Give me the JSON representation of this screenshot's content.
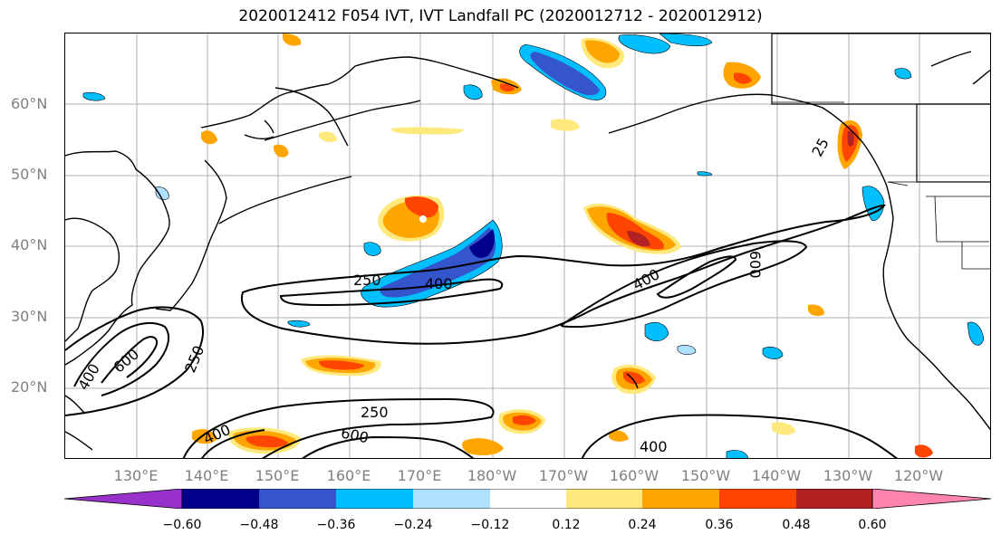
{
  "title": "2020012412 F054 IVT, IVT Landfall PC (2020012712 - 2020012912)",
  "lat_labels": [
    "60°N",
    "50°N",
    "40°N",
    "30°N",
    "20°N"
  ],
  "lon_labels": [
    "130°E",
    "140°E",
    "150°E",
    "160°E",
    "170°E",
    "180°W",
    "170°W",
    "160°W",
    "150°W",
    "140°W",
    "130°W",
    "120°W"
  ],
  "contour_labels": [
    "250",
    "400",
    "400",
    "600",
    "400",
    "600",
    "250",
    "250",
    "400",
    "600",
    "400",
    "25"
  ],
  "colorbar": {
    "ticks": [
      "−0.60",
      "−0.48",
      "−0.36",
      "−0.24",
      "−0.12",
      "0.12",
      "0.24",
      "0.36",
      "0.48",
      "0.60"
    ],
    "colors": [
      "#9932cc",
      "#00008b",
      "#3455cc",
      "#00bfff",
      "#b0e0ff",
      "#ffffff",
      "#ffe87c",
      "#ffa500",
      "#ff4500",
      "#b22222",
      "#ff85b0"
    ]
  }
}
